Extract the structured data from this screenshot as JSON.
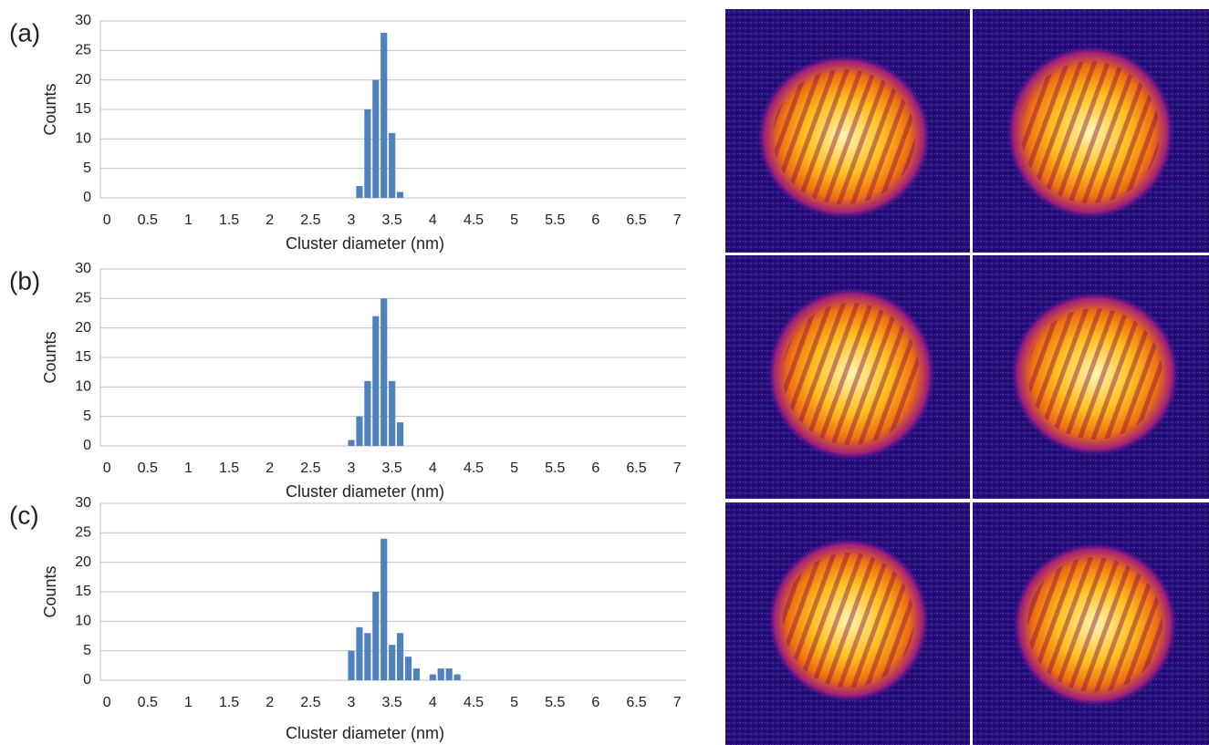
{
  "chart_data": [
    {
      "type": "bar",
      "label": "(a)",
      "xlabel": "Cluster diameter (nm)",
      "ylabel": "Counts",
      "x": [
        3.1,
        3.2,
        3.3,
        3.4,
        3.5,
        3.6
      ],
      "values": [
        2,
        15,
        20,
        28,
        11,
        1
      ],
      "color": "#4f81bd",
      "xlim": [
        -0.08,
        7.11
      ],
      "xticks": [
        0,
        0.5,
        1,
        1.5,
        2,
        2.5,
        3,
        3.5,
        4,
        4.5,
        5,
        5.5,
        6,
        6.5,
        7
      ],
      "ylim": [
        0,
        30
      ],
      "yticks": [
        0,
        5,
        10,
        15,
        20,
        25,
        30
      ],
      "grid": true
    },
    {
      "type": "bar",
      "label": "(b)",
      "xlabel": "Cluster diameter (nm)",
      "ylabel": "Counts",
      "x": [
        3.0,
        3.1,
        3.2,
        3.3,
        3.4,
        3.5,
        3.6
      ],
      "values": [
        1,
        5,
        11,
        22,
        25,
        11,
        4
      ],
      "color": "#4f81bd",
      "xlim": [
        -0.08,
        7.11
      ],
      "xticks": [
        0,
        0.5,
        1,
        1.5,
        2,
        2.5,
        3,
        3.5,
        4,
        4.5,
        5,
        5.5,
        6,
        6.5,
        7
      ],
      "ylim": [
        0,
        30
      ],
      "yticks": [
        0,
        5,
        10,
        15,
        20,
        25,
        30
      ],
      "grid": true
    },
    {
      "type": "bar",
      "label": "(c)",
      "xlabel": "Cluster diameter (nm)",
      "ylabel": "Counts",
      "x": [
        3.0,
        3.1,
        3.2,
        3.3,
        3.4,
        3.5,
        3.6,
        3.7,
        3.8,
        4.0,
        4.1,
        4.2,
        4.3
      ],
      "values": [
        5,
        9,
        8,
        15,
        24,
        6,
        8,
        4,
        2,
        1,
        2,
        2,
        1
      ],
      "color": "#4f81bd",
      "xlim": [
        -0.08,
        7.11
      ],
      "xticks": [
        0,
        0.5,
        1,
        1.5,
        2,
        2.5,
        3,
        3.5,
        4,
        4.5,
        5,
        5.5,
        6,
        6.5,
        7
      ],
      "ylim": [
        0,
        30
      ],
      "yticks": [
        0,
        5,
        10,
        15,
        20,
        25,
        30
      ],
      "grid": true
    }
  ]
}
